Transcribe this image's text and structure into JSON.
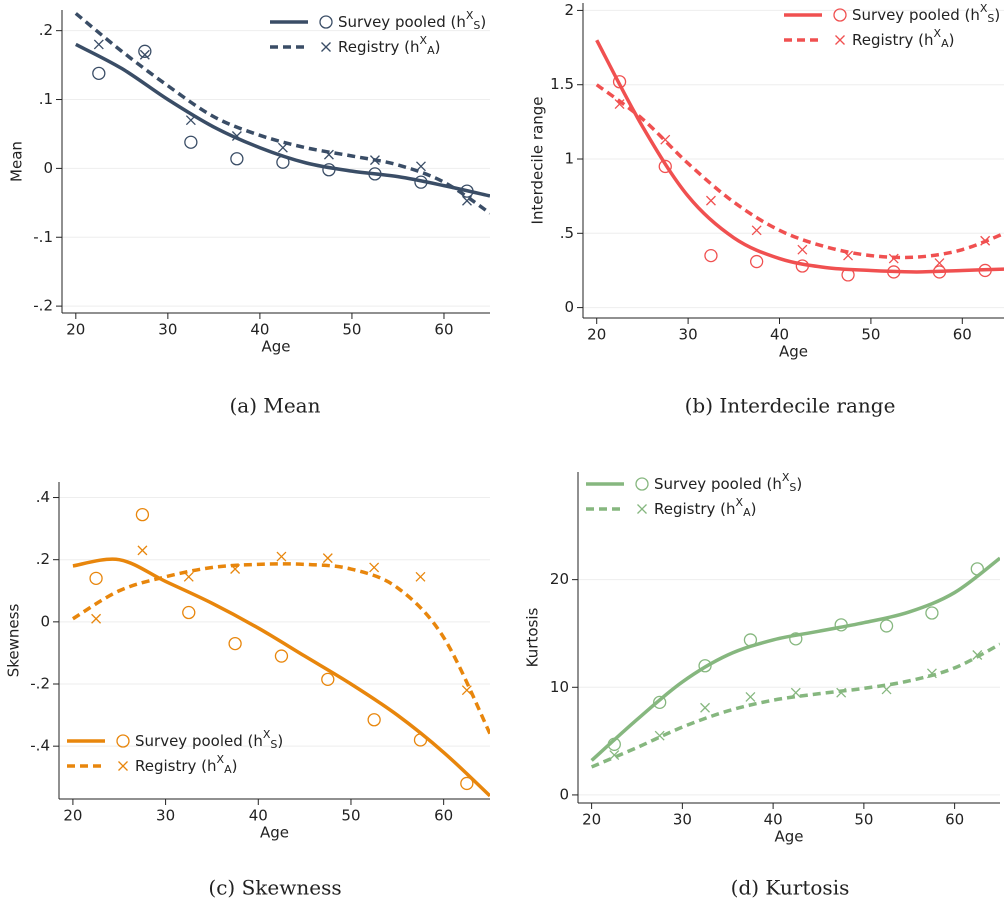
{
  "chart_data": [
    {
      "type": "line",
      "caption": "(a) Mean",
      "x_label": "Age",
      "y_label": "Mean",
      "xlim": [
        18.5,
        65
      ],
      "ylim": [
        -0.21,
        0.23
      ],
      "xticks": [
        20,
        30,
        40,
        50,
        60
      ],
      "yticks": [
        {
          "value": -0.2,
          "label": "-.2"
        },
        {
          "value": -0.1,
          "label": "-.1"
        },
        0,
        {
          "value": 0.1,
          "label": ".1"
        },
        {
          "value": 0.2,
          "label": ".2"
        }
      ],
      "grid": true,
      "legend_position": "upper right",
      "x": [
        22.5,
        27.5,
        32.5,
        37.5,
        42.5,
        47.5,
        52.5,
        57.5,
        62.5
      ],
      "fit_x": [
        20,
        25,
        30,
        35,
        40,
        45,
        50,
        55,
        60,
        65
      ],
      "series": [
        {
          "name": "Survey pooled (h",
          "name_superscript": "X",
          "name_subscript": "S",
          "name_suffix": ")",
          "color": "#3a4d66",
          "marker": "circle",
          "line_style": "solid",
          "values": [
            0.138,
            0.17,
            0.038,
            0.014,
            0.009,
            -0.002,
            -0.008,
            -0.02,
            -0.033
          ],
          "fit_values": [
            0.18,
            0.145,
            0.1,
            0.06,
            0.03,
            0.008,
            -0.004,
            -0.012,
            -0.025,
            -0.04
          ]
        },
        {
          "name": "Registry (h",
          "name_superscript": "X",
          "name_subscript": "A",
          "name_suffix": ")",
          "color": "#3a4d66",
          "marker": "cross",
          "line_style": "dashed",
          "values": [
            0.18,
            0.165,
            0.07,
            0.047,
            0.03,
            0.02,
            0.012,
            0.003,
            -0.047
          ],
          "fit_values": [
            0.225,
            0.17,
            0.12,
            0.075,
            0.048,
            0.03,
            0.018,
            0.005,
            -0.02,
            -0.065
          ]
        }
      ]
    },
    {
      "type": "line",
      "caption": "(b) Interdecile range",
      "x_label": "Age",
      "y_label": "Interdecile range",
      "xlim": [
        18.5,
        65
      ],
      "ylim": [
        -0.07,
        2.05
      ],
      "xticks": [
        20,
        30,
        40,
        50,
        60
      ],
      "yticks": [
        0,
        {
          "value": 0.5,
          "label": ".5"
        },
        1,
        1.5,
        2
      ],
      "grid": true,
      "legend_position": "upper right",
      "x": [
        22.5,
        27.5,
        32.5,
        37.5,
        42.5,
        47.5,
        52.5,
        57.5,
        62.5
      ],
      "fit_x": [
        20,
        25,
        30,
        35,
        40,
        45,
        50,
        55,
        60,
        65
      ],
      "series": [
        {
          "name": "Survey pooled (h",
          "name_superscript": "X",
          "name_subscript": "S",
          "name_suffix": ")",
          "color": "#f05050",
          "marker": "circle",
          "line_style": "solid",
          "values": [
            1.52,
            0.95,
            0.35,
            0.31,
            0.28,
            0.22,
            0.24,
            0.24,
            0.25
          ],
          "fit_values": [
            1.8,
            1.22,
            0.75,
            0.47,
            0.33,
            0.27,
            0.25,
            0.24,
            0.25,
            0.26
          ]
        },
        {
          "name": "Registry (h",
          "name_superscript": "X",
          "name_subscript": "A",
          "name_suffix": ")",
          "color": "#f05050",
          "marker": "cross",
          "line_style": "dashed",
          "values": [
            1.37,
            1.13,
            0.72,
            0.52,
            0.39,
            0.35,
            0.33,
            0.3,
            0.45
          ],
          "fit_values": [
            1.5,
            1.27,
            0.97,
            0.71,
            0.52,
            0.41,
            0.35,
            0.34,
            0.39,
            0.51
          ]
        }
      ]
    },
    {
      "type": "line",
      "caption": "(c) Skewness",
      "x_label": "Age",
      "y_label": "Skewness",
      "xlim": [
        18.5,
        65
      ],
      "ylim": [
        -0.57,
        0.45
      ],
      "xticks": [
        20,
        30,
        40,
        50,
        60
      ],
      "yticks": [
        {
          "value": -0.4,
          "label": "-.4"
        },
        {
          "value": -0.2,
          "label": "-.2"
        },
        0,
        {
          "value": 0.2,
          "label": ".2"
        },
        {
          "value": 0.4,
          "label": ".4"
        }
      ],
      "grid": true,
      "legend_position": "lower left",
      "x": [
        22.5,
        27.5,
        32.5,
        37.5,
        42.5,
        47.5,
        52.5,
        57.5,
        62.5
      ],
      "fit_x": [
        20,
        25,
        30,
        35,
        40,
        45,
        50,
        55,
        60,
        65
      ],
      "series": [
        {
          "name": "Survey pooled (h",
          "name_superscript": "X",
          "name_subscript": "S",
          "name_suffix": ")",
          "color": "#e8860c",
          "marker": "circle",
          "line_style": "solid",
          "values": [
            0.14,
            0.345,
            0.03,
            -0.07,
            -0.11,
            -0.185,
            -0.315,
            -0.38,
            -0.52
          ],
          "fit_values": [
            0.18,
            0.2,
            0.13,
            0.06,
            -0.02,
            -0.11,
            -0.2,
            -0.3,
            -0.42,
            -0.56
          ]
        },
        {
          "name": "Registry (h",
          "name_superscript": "X",
          "name_subscript": "A",
          "name_suffix": ")",
          "color": "#e8860c",
          "marker": "cross",
          "line_style": "dashed",
          "values": [
            0.01,
            0.23,
            0.145,
            0.17,
            0.21,
            0.205,
            0.175,
            0.145,
            -0.22
          ],
          "fit_values": [
            0.01,
            0.1,
            0.145,
            0.175,
            0.185,
            0.185,
            0.17,
            0.11,
            -0.05,
            -0.36
          ]
        }
      ]
    },
    {
      "type": "line",
      "caption": "(d) Kurtosis",
      "x_label": "Age",
      "y_label": "Kurtosis",
      "xlim": [
        18.5,
        65
      ],
      "ylim": [
        -0.75,
        30
      ],
      "xticks": [
        20,
        30,
        40,
        50,
        60
      ],
      "yticks": [
        0,
        10,
        20
      ],
      "grid": true,
      "legend_position": "upper left",
      "x": [
        22.5,
        27.5,
        32.5,
        37.5,
        42.5,
        47.5,
        52.5,
        57.5,
        62.5
      ],
      "fit_x": [
        20,
        25,
        30,
        35,
        40,
        45,
        50,
        55,
        60,
        65
      ],
      "series": [
        {
          "name": "Survey pooled (h",
          "name_superscript": "X",
          "name_subscript": "S",
          "name_suffix": ")",
          "color": "#86b77f",
          "marker": "circle",
          "line_style": "solid",
          "values": [
            4.7,
            8.6,
            12,
            14.4,
            14.5,
            15.8,
            15.7,
            16.9,
            21
          ],
          "fit_values": [
            3.2,
            7,
            10.5,
            13,
            14.4,
            15.2,
            16,
            17,
            18.8,
            22
          ]
        },
        {
          "name": "Registry (h",
          "name_superscript": "X",
          "name_subscript": "A",
          "name_suffix": ")",
          "color": "#86b77f",
          "marker": "cross",
          "line_style": "dashed",
          "values": [
            3.7,
            5.5,
            8.1,
            9.1,
            9.5,
            9.5,
            9.8,
            11.3,
            13
          ],
          "fit_values": [
            2.6,
            4.4,
            6.3,
            7.8,
            8.8,
            9.4,
            9.9,
            10.6,
            11.8,
            14
          ]
        }
      ]
    }
  ]
}
